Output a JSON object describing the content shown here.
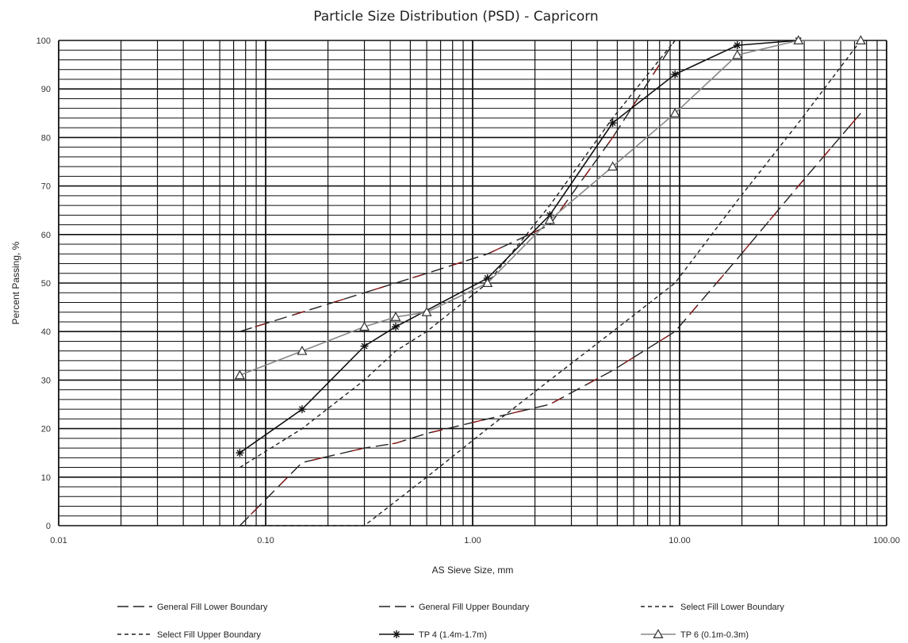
{
  "chart_data": {
    "type": "line",
    "title": "Particle Size Distribution (PSD) - Capricorn",
    "xlabel": "AS Sieve Size, mm",
    "ylabel": "Percent Passing, %",
    "x_scale": "log",
    "xlim": [
      0.01,
      100
    ],
    "ylim": [
      0,
      100
    ],
    "x_ticks": [
      0.01,
      0.1,
      1,
      10,
      100
    ],
    "x_tick_labels": [
      "0.01",
      "0.10",
      "1.00",
      "10.00",
      "100.00"
    ],
    "y_ticks": [
      0,
      10,
      20,
      30,
      40,
      50,
      60,
      70,
      80,
      90,
      100
    ],
    "y_tick_labels": [
      "0",
      "10",
      "20",
      "30",
      "40",
      "50",
      "60",
      "70",
      "80",
      "90",
      "100"
    ],
    "grid": true,
    "legend_position": "bottom",
    "series": [
      {
        "name": "General Fill Lower Boundary",
        "style": "long-dash",
        "color": "#222222",
        "accent": "#8b1a1a",
        "marker": "none",
        "x": [
          0.075,
          0.15,
          0.3,
          0.425,
          0.6,
          1.18,
          2.36,
          4.75,
          9.5,
          19,
          37.5,
          75
        ],
        "y": [
          0,
          13,
          16,
          17,
          19,
          22,
          25,
          32,
          40,
          55,
          70,
          85
        ]
      },
      {
        "name": "General Fill Upper Boundary",
        "style": "long-dash",
        "color": "#222222",
        "accent": "#8b1a1a",
        "marker": "none",
        "x": [
          0.075,
          0.15,
          0.3,
          0.6,
          1.18,
          2.36,
          4.75,
          9.5
        ],
        "y": [
          40,
          44,
          48,
          52,
          56,
          62,
          80,
          100
        ]
      },
      {
        "name": "Select Fill Lower Boundary",
        "style": "short-dash",
        "color": "#222222",
        "marker": "none",
        "x": [
          0.075,
          0.3,
          0.6,
          1.18,
          2.36,
          4.75,
          9.5,
          19,
          37.5,
          75
        ],
        "y": [
          0,
          0,
          10,
          20,
          30,
          40,
          50,
          67,
          83,
          100
        ]
      },
      {
        "name": "Select Fill Upper Boundary",
        "style": "short-dash",
        "color": "#222222",
        "marker": "none",
        "x": [
          0.075,
          0.15,
          0.3,
          0.425,
          0.6,
          1.18,
          2.36,
          4.75,
          9.5
        ],
        "y": [
          12,
          20,
          30,
          36,
          40,
          50,
          66,
          84,
          100
        ]
      },
      {
        "name": "TP 4 (1.4m-1.7m)",
        "style": "solid",
        "color": "#111111",
        "marker": "asterisk",
        "x": [
          0.075,
          0.15,
          0.3,
          0.425,
          1.18,
          2.36,
          4.75,
          9.5,
          19,
          37.5
        ],
        "y": [
          15,
          24,
          37,
          41,
          51,
          64,
          83,
          93,
          99,
          100
        ]
      },
      {
        "name": "TP 6 (0.1m-0.3m)",
        "style": "solid",
        "color": "#888888",
        "marker": "triangle",
        "x": [
          0.075,
          0.15,
          0.3,
          0.425,
          0.6,
          1.18,
          2.36,
          4.75,
          9.5,
          19,
          37.5,
          75
        ],
        "y": [
          31,
          36,
          41,
          43,
          44,
          50,
          63,
          74,
          85,
          97,
          100,
          100
        ]
      }
    ]
  }
}
